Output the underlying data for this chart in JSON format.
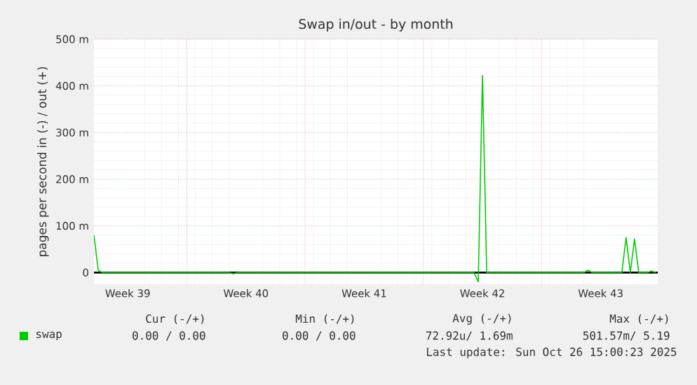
{
  "chart_data": {
    "type": "line",
    "title": "Swap in/out - by month",
    "ylabel": "pages per second in (-) / out (+)",
    "categories": [
      null,
      null,
      null,
      null,
      null,
      null,
      null,
      null,
      "Week 39",
      null,
      null,
      null,
      null,
      null,
      null,
      null,
      null,
      null,
      null,
      null,
      null,
      null,
      null,
      null,
      null,
      null,
      null,
      null,
      null,
      null,
      null,
      null,
      null,
      null,
      null,
      null,
      "Week 40",
      null,
      null,
      null,
      null,
      null,
      null,
      null,
      null,
      null,
      null,
      null,
      null,
      null,
      null,
      null,
      null,
      null,
      null,
      null,
      null,
      null,
      null,
      null,
      null,
      null,
      null,
      null,
      "Week 41",
      null,
      null,
      null,
      null,
      null,
      null,
      null,
      null,
      null,
      null,
      null,
      null,
      null,
      null,
      null,
      null,
      null,
      null,
      null,
      null,
      null,
      null,
      null,
      null,
      null,
      null,
      null,
      "Week 42",
      null,
      null,
      null,
      null,
      null,
      null,
      null,
      null,
      null,
      null,
      null,
      null,
      null,
      null,
      null,
      null,
      null,
      null,
      null,
      null,
      null,
      null,
      null,
      null,
      null,
      null,
      null,
      "Week 43",
      null,
      null,
      null,
      null,
      null,
      null,
      null,
      null,
      null,
      null,
      null,
      null,
      null
    ],
    "series": [
      {
        "name": "swap",
        "color": "#00cc00",
        "values": [
          80,
          5,
          0,
          0,
          0,
          0,
          0,
          0,
          0,
          0,
          0,
          0,
          0,
          0,
          0,
          0,
          0,
          0,
          0,
          0,
          0,
          0,
          0,
          0,
          0,
          0,
          0,
          0,
          0,
          0,
          0,
          0,
          0,
          -3,
          0,
          0,
          0,
          0,
          0,
          0,
          0,
          0,
          0,
          0,
          0,
          0,
          0,
          0,
          0,
          0,
          0,
          0,
          0,
          0,
          0,
          0,
          0,
          0,
          0,
          0,
          0,
          0,
          0,
          0,
          0,
          0,
          0,
          0,
          0,
          0,
          0,
          0,
          0,
          0,
          0,
          0,
          0,
          0,
          0,
          0,
          0,
          0,
          0,
          0,
          0,
          0,
          0,
          0,
          0,
          0,
          0,
          -20,
          422,
          0,
          0,
          0,
          0,
          0,
          0,
          0,
          0,
          0,
          0,
          0,
          0,
          0,
          0,
          0,
          0,
          0,
          0,
          0,
          0,
          0,
          0,
          0,
          0,
          5,
          0,
          0,
          0,
          0,
          0,
          0,
          0,
          0,
          75,
          0,
          72,
          0,
          0,
          0,
          3,
          0
        ]
      }
    ],
    "ylim": [
      -25,
      500
    ],
    "yticks": [
      0,
      {
        "value": 100,
        "label": "100 m"
      },
      {
        "value": 200,
        "label": "200 m"
      },
      {
        "value": 300,
        "label": "300 m"
      },
      {
        "value": 400,
        "label": "400 m"
      },
      {
        "value": 500,
        "label": "500 m"
      }
    ],
    "ref_lines": [
      {
        "axis": "y",
        "value": 0,
        "color": "#000000"
      }
    ],
    "grid": true,
    "legend": "bottom left",
    "annotations": [
      "Cur (-/+)",
      "Min (-/+)",
      "Avg (-/+)",
      "Max (-/+)",
      "0.00 /  0.00",
      "0.00 /  0.00",
      "72.92u/  1.69m",
      "501.57m/  5.19",
      "Last update: Sun Oct 26 15:00:23 2025"
    ]
  }
}
